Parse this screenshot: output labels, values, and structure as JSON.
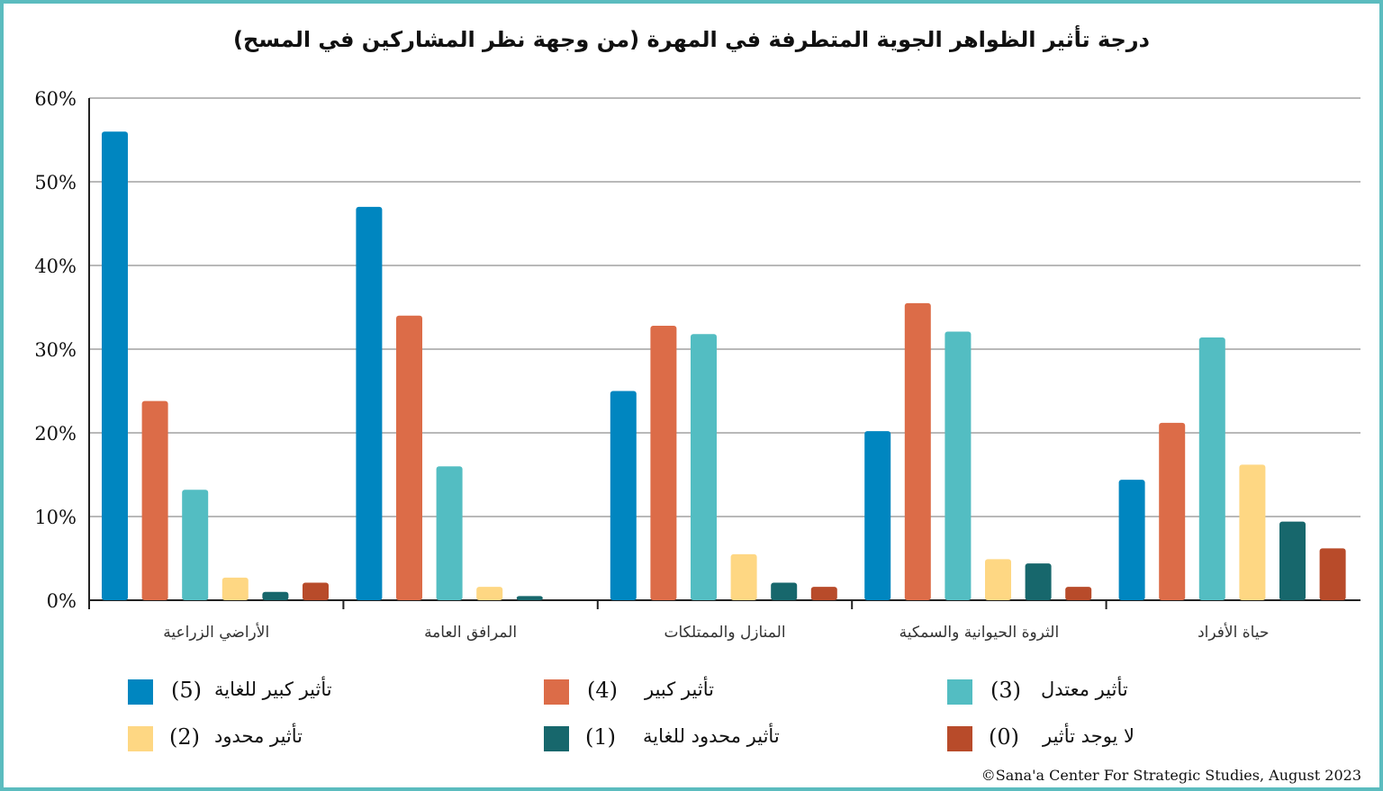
{
  "chart_data": {
    "type": "bar",
    "title": "درجة تأثير الظواهر الجوية المتطرفة في المهرة (من وجهة نظر المشاركين في المسح)",
    "categories": [
      "الأراضي الزراعية",
      "المرافق العامة",
      "المنازل والممتلكات",
      "الثروة الحيوانية والسمكية",
      "حياة الأفراد"
    ],
    "series": [
      {
        "name": "تأثير كبير للغاية",
        "code": "(5)",
        "color": "#0086c0",
        "values": [
          56,
          47,
          25,
          20.2,
          14.4
        ]
      },
      {
        "name": "تأثير كبير",
        "code": "(4)",
        "color": "#dc6c48",
        "values": [
          23.8,
          34,
          32.8,
          35.5,
          21.2
        ]
      },
      {
        "name": "تأثير معتدل",
        "code": "(3)",
        "color": "#53bdc2",
        "values": [
          13.2,
          16,
          31.8,
          32.1,
          31.4
        ]
      },
      {
        "name": "تأثير محدود",
        "code": "(2)",
        "color": "#fed783",
        "values": [
          2.7,
          1.6,
          5.5,
          4.9,
          16.2
        ]
      },
      {
        "name": "تأثير محدود للغاية",
        "code": "(1)",
        "color": "#17676c",
        "values": [
          1,
          0.5,
          2.1,
          4.4,
          9.4
        ]
      },
      {
        "name": "لا يوجد تأثير",
        "code": "(0)",
        "color": "#b84b2a",
        "values": [
          2.1,
          0,
          1.6,
          1.6,
          6.2
        ]
      }
    ],
    "ylim": [
      0,
      60
    ],
    "yticks": [
      "0%",
      "10%",
      "20%",
      "30%",
      "40%",
      "50%",
      "60%"
    ],
    "xlabel": "",
    "ylabel": "",
    "grid": true,
    "legend": "bottom"
  },
  "credit": "©Sana'a Center For Strategic Studies, August 2023",
  "colors": {
    "frame": "#5bbcbf",
    "grid": "#b9b9b9",
    "axis": "#222222"
  }
}
